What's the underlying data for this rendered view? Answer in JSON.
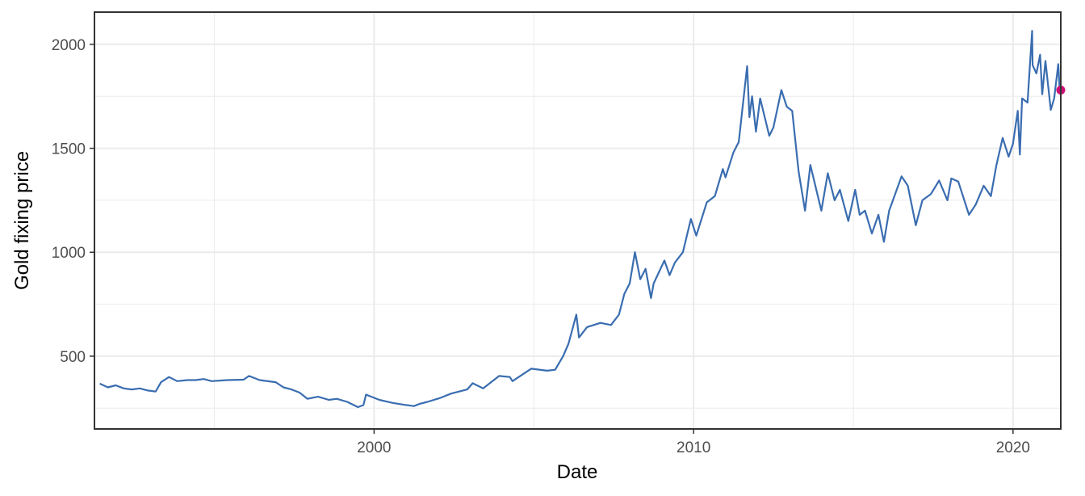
{
  "chart_data": {
    "type": "line",
    "title": "",
    "xlabel": "Date",
    "ylabel": "Gold fixing price",
    "x_type": "date",
    "xlim": [
      "1991-04-01",
      "2021-06-30"
    ],
    "ylim": [
      150,
      2155
    ],
    "x_ticks": [
      "2000",
      "2010",
      "2020"
    ],
    "y_ticks": [
      500,
      1000,
      1500,
      2000
    ],
    "grid": true,
    "legend": "none",
    "colors": {
      "line": "#3a6db0",
      "highlight": "#cc0e74",
      "grid": "#ebebeb",
      "frame": "#333333"
    },
    "series": [
      {
        "x": [
          "1991-06-01",
          "1991-09-01",
          "1991-12-01",
          "1992-03-01",
          "1992-06-01",
          "1992-09-01",
          "1992-12-01",
          "1993-03-01",
          "1993-05-01",
          "1993-08-01",
          "1993-11-01",
          "1994-03-01",
          "1994-06-01",
          "1994-09-01",
          "1994-12-01",
          "1995-06-01",
          "1995-12-01",
          "1996-02-01",
          "1996-06-01",
          "1996-12-01",
          "1997-03-01",
          "1997-06-01",
          "1997-09-01",
          "1997-12-01",
          "1998-04-01",
          "1998-08-01",
          "1998-11-01",
          "1999-03-01",
          "1999-07-01",
          "1999-09-01",
          "1999-10-01",
          "2000-03-01",
          "2000-08-01",
          "2001-01-01",
          "2001-04-01",
          "2001-06-01",
          "2001-09-01",
          "2002-02-01",
          "2002-06-01",
          "2002-12-01",
          "2003-02-01",
          "2003-06-01",
          "2003-12-01",
          "2004-04-01",
          "2004-05-01",
          "2004-12-01",
          "2005-06-01",
          "2005-09-01",
          "2005-12-01",
          "2006-02-01",
          "2006-05-01",
          "2006-06-01",
          "2006-09-01",
          "2007-02-01",
          "2007-06-01",
          "2007-09-01",
          "2007-11-01",
          "2008-01-01",
          "2008-03-01",
          "2008-05-01",
          "2008-07-01",
          "2008-09-01",
          "2008-10-01",
          "2009-02-01",
          "2009-04-01",
          "2009-06-01",
          "2009-09-01",
          "2009-12-01",
          "2010-02-01",
          "2010-06-01",
          "2010-09-01",
          "2010-12-01",
          "2011-01-01",
          "2011-04-01",
          "2011-06-01",
          "2011-09-05",
          "2011-10-01",
          "2011-11-01",
          "2011-12-15",
          "2012-02-01",
          "2012-05-15",
          "2012-07-01",
          "2012-10-01",
          "2012-12-01",
          "2013-02-01",
          "2013-04-15",
          "2013-06-28",
          "2013-08-28",
          "2013-12-31",
          "2014-03-15",
          "2014-06-01",
          "2014-08-01",
          "2014-11-05",
          "2015-01-22",
          "2015-03-15",
          "2015-05-15",
          "2015-08-01",
          "2015-10-15",
          "2015-12-17",
          "2016-02-15",
          "2016-07-06",
          "2016-09-15",
          "2016-12-15",
          "2017-03-01",
          "2017-06-06",
          "2017-09-08",
          "2017-12-12",
          "2018-01-25",
          "2018-04-15",
          "2018-08-16",
          "2018-11-01",
          "2019-01-31",
          "2019-04-23",
          "2019-06-25",
          "2019-09-04",
          "2019-11-12",
          "2019-12-31",
          "2020-02-24",
          "2020-03-19",
          "2020-04-14",
          "2020-06-15",
          "2020-08-06",
          "2020-08-12",
          "2020-09-24",
          "2020-11-06",
          "2020-11-30",
          "2021-01-06",
          "2021-03-08",
          "2021-04-15",
          "2021-06-01",
          "2021-06-18",
          "2021-06-30"
        ],
        "values": [
          368,
          350,
          360,
          345,
          340,
          345,
          335,
          330,
          375,
          400,
          380,
          385,
          385,
          390,
          380,
          385,
          387,
          405,
          385,
          375,
          350,
          340,
          325,
          295,
          305,
          290,
          295,
          280,
          255,
          265,
          315,
          290,
          275,
          265,
          260,
          270,
          280,
          300,
          320,
          340,
          370,
          345,
          405,
          400,
          380,
          440,
          430,
          435,
          500,
          560,
          700,
          590,
          640,
          660,
          650,
          700,
          800,
          850,
          1000,
          870,
          920,
          780,
          850,
          960,
          890,
          950,
          1000,
          1160,
          1080,
          1240,
          1270,
          1400,
          1360,
          1480,
          1530,
          1895,
          1650,
          1750,
          1580,
          1740,
          1560,
          1600,
          1780,
          1700,
          1680,
          1390,
          1200,
          1420,
          1200,
          1380,
          1250,
          1300,
          1150,
          1300,
          1180,
          1200,
          1090,
          1180,
          1050,
          1200,
          1365,
          1320,
          1130,
          1250,
          1280,
          1345,
          1250,
          1355,
          1340,
          1180,
          1230,
          1320,
          1270,
          1420,
          1550,
          1460,
          1520,
          1680,
          1470,
          1740,
          1720,
          2065,
          1900,
          1860,
          1950,
          1760,
          1920,
          1685,
          1740,
          1905,
          1775,
          1780
        ]
      }
    ],
    "highlight_point": {
      "x": "2021-06-30",
      "y": 1780
    }
  }
}
